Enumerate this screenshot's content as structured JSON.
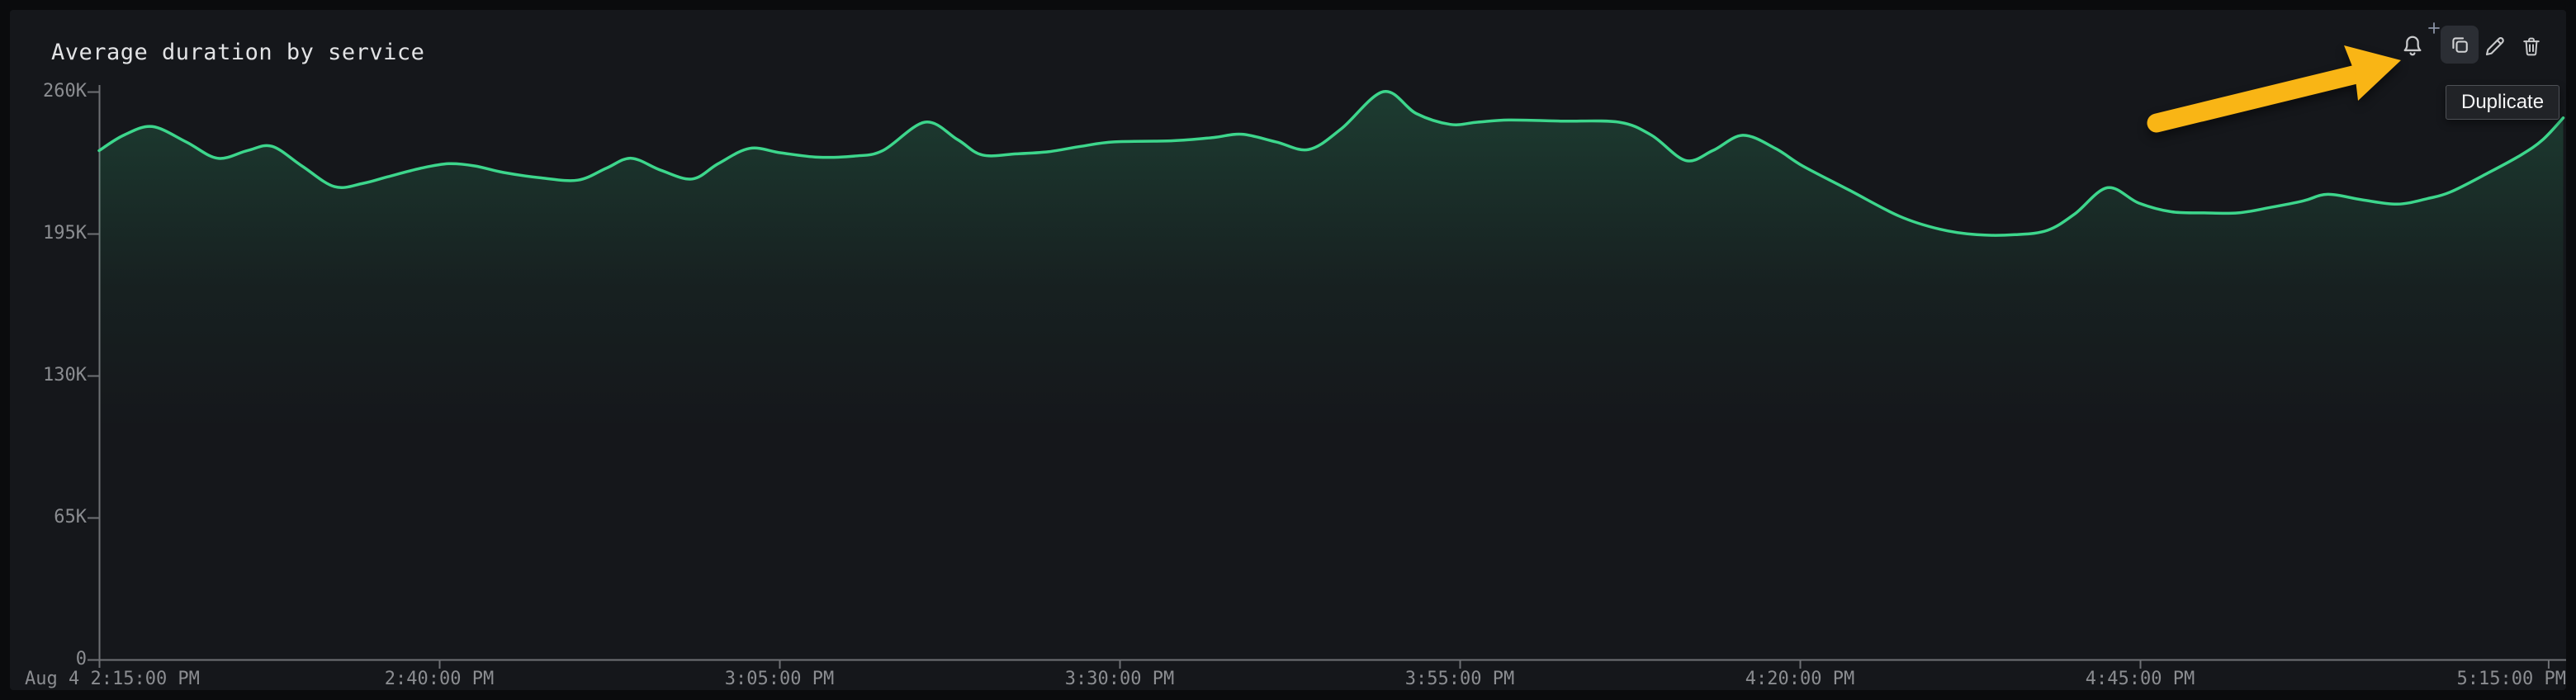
{
  "panel": {
    "title": "Average duration by service",
    "toolbar": {
      "icons": [
        {
          "name": "alert-bell-plus",
          "state": "normal"
        },
        {
          "name": "duplicate",
          "state": "hovered"
        },
        {
          "name": "edit-pencil",
          "state": "normal"
        },
        {
          "name": "delete-trash",
          "state": "normal"
        }
      ],
      "tooltip_text": "Duplicate"
    },
    "annotation": {
      "type": "arrow",
      "points_at": "duplicate-button",
      "color": "#f9b515"
    }
  },
  "colors": {
    "page_background": "#0a0b0d",
    "panel_background": "#15171b",
    "title_text": "#e2e3e5",
    "axis_text": "#8b8d91",
    "axis_line": "#6f7175",
    "series_line": "#3dd68c",
    "arrow": "#f9b515",
    "tooltip_background": "#212327",
    "tooltip_border": "#4e5156",
    "icon": "#c9cacc",
    "hover_button_background": "#2b2e34"
  },
  "chart_data": {
    "type": "line",
    "title": "Average duration by service",
    "xlabel": "",
    "ylabel": "",
    "grid": false,
    "legend": "none",
    "x_axis": {
      "start_label": {
        "label": "Aug 4 2:15:00 PM",
        "t_min": 0,
        "align": "left"
      },
      "ticks": [
        {
          "label": "2:40:00 PM",
          "t_min": 25,
          "align": "center"
        },
        {
          "label": "3:05:00 PM",
          "t_min": 50,
          "align": "center"
        },
        {
          "label": "3:30:00 PM",
          "t_min": 75,
          "align": "center"
        },
        {
          "label": "3:55:00 PM",
          "t_min": 100,
          "align": "center"
        },
        {
          "label": "4:20:00 PM",
          "t_min": 125,
          "align": "center"
        },
        {
          "label": "4:45:00 PM",
          "t_min": 150,
          "align": "center"
        },
        {
          "label": "5:15:00 PM",
          "t_min": 180,
          "align": "right"
        }
      ],
      "range_minutes": [
        0,
        180
      ]
    },
    "y_axis": {
      "unit": "K",
      "ticks": [
        {
          "label": "260K",
          "v": 260
        },
        {
          "label": "195K",
          "v": 195
        },
        {
          "label": "130K",
          "v": 130
        },
        {
          "label": "65K",
          "v": 65
        },
        {
          "label": "0",
          "v": 0
        }
      ],
      "ylim": [
        0,
        262
      ]
    },
    "series": [
      {
        "name": "Average duration",
        "color": "#3dd68c",
        "fill": "gradient-opacity",
        "points_t_min_vK": [
          [
            0,
            233
          ],
          [
            1.8,
            240
          ],
          [
            3.9,
            244
          ],
          [
            6.4,
            237
          ],
          [
            8.7,
            229.5
          ],
          [
            10.9,
            233
          ],
          [
            12.7,
            235
          ],
          [
            14.9,
            226
          ],
          [
            17.3,
            216.5
          ],
          [
            19.4,
            218
          ],
          [
            21.2,
            221
          ],
          [
            23.7,
            225
          ],
          [
            25.7,
            227
          ],
          [
            27.6,
            226
          ],
          [
            29.7,
            223
          ],
          [
            32.5,
            220.5
          ],
          [
            35.2,
            219.5
          ],
          [
            37.3,
            225
          ],
          [
            39.1,
            229.5
          ],
          [
            41.3,
            224
          ],
          [
            43.6,
            220
          ],
          [
            45.5,
            227
          ],
          [
            47.8,
            234
          ],
          [
            50.1,
            232
          ],
          [
            52.8,
            230
          ],
          [
            55.5,
            230.5
          ],
          [
            57.6,
            233
          ],
          [
            60.7,
            246
          ],
          [
            63.1,
            238
          ],
          [
            64.9,
            231
          ],
          [
            67.4,
            231.5
          ],
          [
            69.8,
            232.5
          ],
          [
            72.2,
            235
          ],
          [
            74.6,
            237
          ],
          [
            78.9,
            237.5
          ],
          [
            81.9,
            239
          ],
          [
            84,
            240.5
          ],
          [
            86.5,
            237
          ],
          [
            88.9,
            233.5
          ],
          [
            91.3,
            243
          ],
          [
            94.4,
            260
          ],
          [
            96.8,
            250
          ],
          [
            99.3,
            245
          ],
          [
            101.3,
            246
          ],
          [
            103.6,
            247
          ],
          [
            107.4,
            246.5
          ],
          [
            111.7,
            246
          ],
          [
            114.1,
            240
          ],
          [
            116.6,
            228.5
          ],
          [
            118.6,
            233
          ],
          [
            120.8,
            240
          ],
          [
            123.2,
            234
          ],
          [
            125.2,
            226
          ],
          [
            128.6,
            215
          ],
          [
            132.3,
            203
          ],
          [
            135.3,
            197
          ],
          [
            138,
            194.5
          ],
          [
            140.8,
            194.5
          ],
          [
            143.2,
            196.5
          ],
          [
            145.2,
            204
          ],
          [
            147.6,
            216
          ],
          [
            149.9,
            209
          ],
          [
            152.3,
            205
          ],
          [
            154.7,
            204.5
          ],
          [
            157.2,
            204.5
          ],
          [
            159.6,
            207
          ],
          [
            162,
            210
          ],
          [
            163.8,
            213
          ],
          [
            166.3,
            210.5
          ],
          [
            168.9,
            208.5
          ],
          [
            171.1,
            211
          ],
          [
            172.8,
            214
          ],
          [
            175.5,
            222.5
          ],
          [
            178,
            231
          ],
          [
            179.6,
            238
          ],
          [
            181.1,
            248
          ]
        ]
      }
    ]
  }
}
